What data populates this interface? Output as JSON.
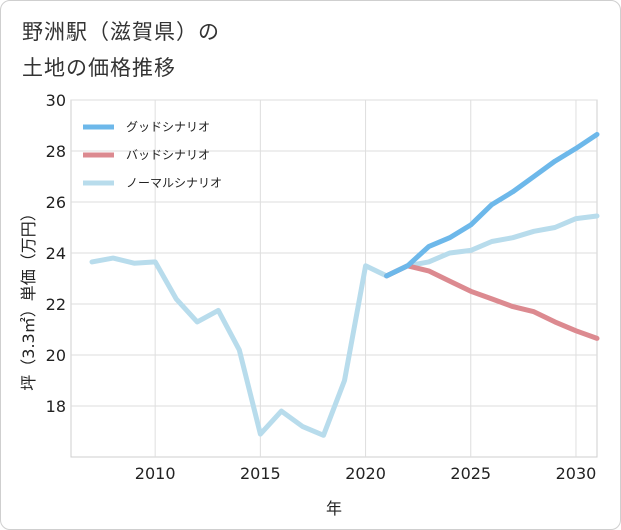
{
  "page": {
    "title": "野洲駅（滋賀県）の\n土地の価格推移"
  },
  "chart_data": {
    "type": "line",
    "xlabel": "年",
    "ylabel": "坪（3.3㎡）単価（万円）",
    "xlim": [
      2006,
      2031
    ],
    "ylim": [
      16,
      30
    ],
    "xticks": [
      2010,
      2015,
      2020,
      2025,
      2030
    ],
    "yticks": [
      18,
      20,
      22,
      24,
      26,
      28,
      30
    ],
    "grid": true,
    "legend_position": "top-left",
    "series": [
      {
        "name": "グッドシナリオ",
        "color": "#6db8ea",
        "x": [
          2021,
          2022,
          2023,
          2024,
          2025,
          2026,
          2027,
          2028,
          2029,
          2030,
          2031
        ],
        "y": [
          23.1,
          23.5,
          24.25,
          24.6,
          25.1,
          25.9,
          26.4,
          27.0,
          27.6,
          28.1,
          28.65
        ]
      },
      {
        "name": "バッドシナリオ",
        "color": "#dc8a90",
        "x": [
          2021,
          2022,
          2023,
          2024,
          2025,
          2026,
          2027,
          2028,
          2029,
          2030,
          2031
        ],
        "y": [
          23.1,
          23.5,
          23.3,
          22.9,
          22.5,
          22.2,
          21.9,
          21.7,
          21.3,
          20.95,
          20.65
        ]
      },
      {
        "name": "ノーマルシナリオ",
        "color": "#b8dcec",
        "x": [
          2007,
          2008,
          2009,
          2010,
          2011,
          2012,
          2013,
          2014,
          2015,
          2016,
          2017,
          2018,
          2019,
          2020,
          2021,
          2022,
          2023,
          2024,
          2025,
          2026,
          2027,
          2028,
          2029,
          2030,
          2031
        ],
        "y": [
          23.65,
          23.8,
          23.6,
          23.65,
          22.2,
          21.3,
          21.75,
          20.2,
          16.9,
          17.8,
          17.2,
          16.85,
          19.0,
          23.5,
          23.1,
          23.5,
          23.65,
          24.0,
          24.1,
          24.45,
          24.6,
          24.85,
          25.0,
          25.35,
          25.45
        ]
      }
    ]
  }
}
